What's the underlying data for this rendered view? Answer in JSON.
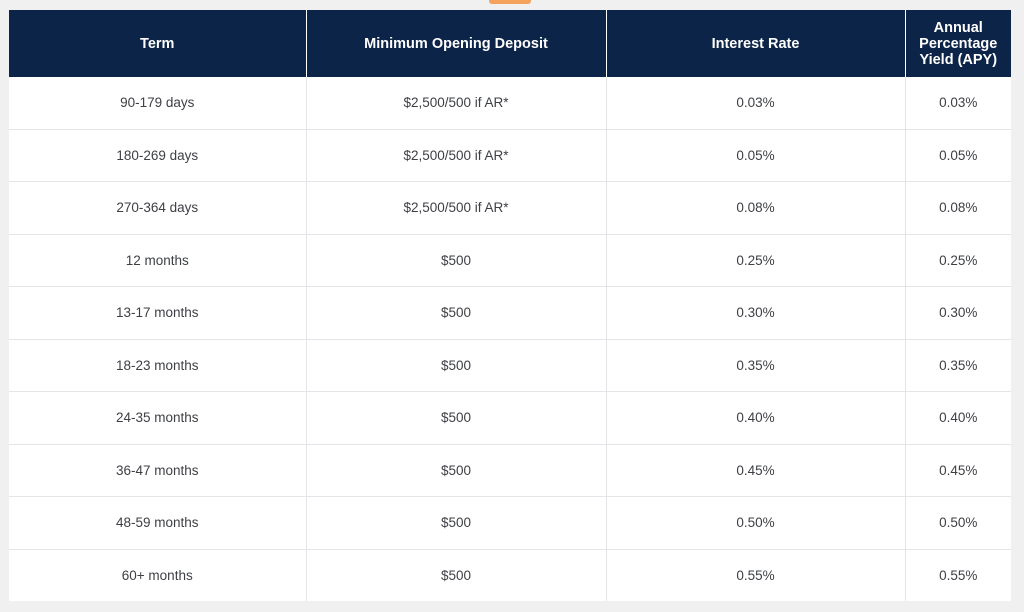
{
  "colors": {
    "header_bg": "#0c2448",
    "accent": "#f5a25d",
    "page_bg": "#f0f0f1",
    "cell_text": "#3d3f44"
  },
  "table": {
    "headers": [
      "Term",
      "Minimum Opening Deposit",
      "Interest Rate",
      "Annual Percentage Yield (APY)"
    ],
    "rows": [
      [
        "90-179 days",
        "$2,500/500 if AR*",
        "0.03%",
        "0.03%"
      ],
      [
        "180-269 days",
        "$2,500/500 if AR*",
        "0.05%",
        "0.05%"
      ],
      [
        "270-364 days",
        "$2,500/500 if AR*",
        "0.08%",
        "0.08%"
      ],
      [
        "12 months",
        "$500",
        "0.25%",
        "0.25%"
      ],
      [
        "13-17 months",
        "$500",
        "0.30%",
        "0.30%"
      ],
      [
        "18-23 months",
        "$500",
        "0.35%",
        "0.35%"
      ],
      [
        "24-35 months",
        "$500",
        "0.40%",
        "0.40%"
      ],
      [
        "36-47 months",
        "$500",
        "0.45%",
        "0.45%"
      ],
      [
        "48-59 months",
        "$500",
        "0.50%",
        "0.50%"
      ],
      [
        "60+ months",
        "$500",
        "0.55%",
        "0.55%"
      ]
    ]
  }
}
